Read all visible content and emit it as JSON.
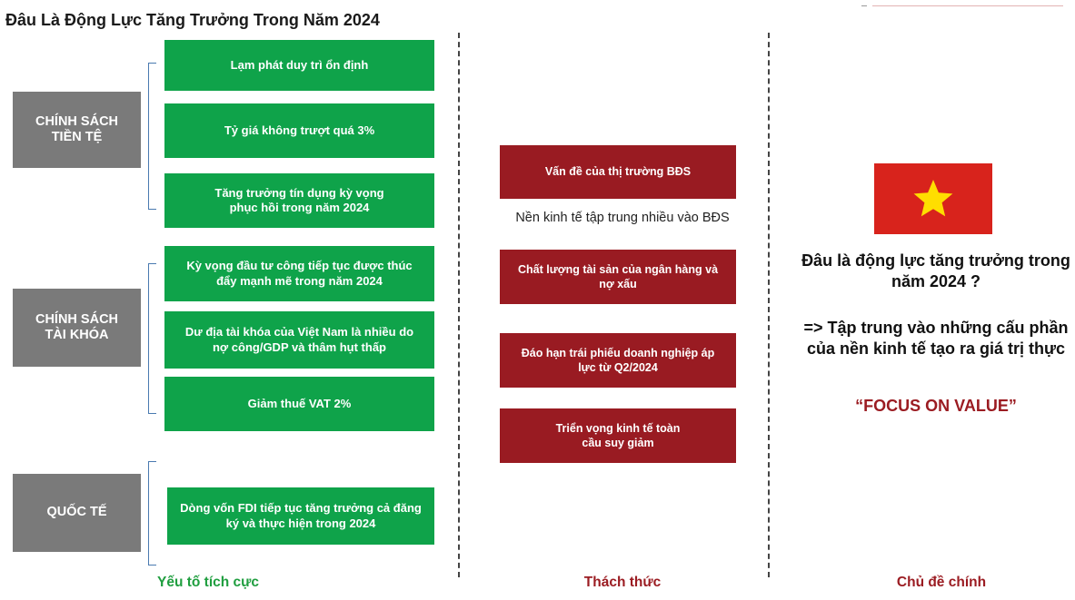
{
  "title": "Đâu Là Động Lực Tăng Trưởng Trong Năm 2024",
  "categories": {
    "monetary": "CHÍNH SÁCH TIỀN TỆ",
    "fiscal": "CHÍNH SÁCH TÀI KHÓA",
    "international": "QUỐC TẾ"
  },
  "positives": [
    "Lạm phát duy trì ổn định",
    "Tỷ giá không trượt quá 3%",
    "Tăng trưởng tín dụng kỳ vọng phục hồi trong năm 2024",
    "Kỳ vọng đầu tư công tiếp tục được thúc đẩy mạnh mẽ trong năm 2024",
    "Dư địa tài khóa của Việt Nam là nhiều do nợ công/GDP và thâm hụt thấp",
    "Giảm thuế VAT 2%",
    "Dòng vốn FDI tiếp tục tăng trưởng cả đăng ký và thực hiện trong 2024"
  ],
  "challenges": [
    "Vấn đề của thị trường BĐS",
    "Chất lượng tài sản của ngân hàng và nợ xấu",
    "Đáo hạn trái phiếu doanh nghiệp áp lực từ Q2/2024",
    "Triển vọng kinh tế toàn cầu suy giảm"
  ],
  "challenge_note": "Nền kinh tế tập trung nhiều vào BĐS",
  "theme": {
    "question": "Đâu là động lực tăng trưởng trong năm 2024 ?",
    "answer": "=> Tập trung vào những cấu phần của nền kinh tế tạo ra giá trị thực",
    "focus": "“FOCUS ON VALUE”"
  },
  "footers": {
    "positive": "Yếu tố tích cực",
    "challenge": "Thách thức",
    "theme": "Chủ đề chính"
  },
  "colors": {
    "green": "#0fa34a",
    "dark_red": "#991b22",
    "gray": "#7a7a7a",
    "flag_red": "#d8231c",
    "flag_star": "#ffde00"
  }
}
